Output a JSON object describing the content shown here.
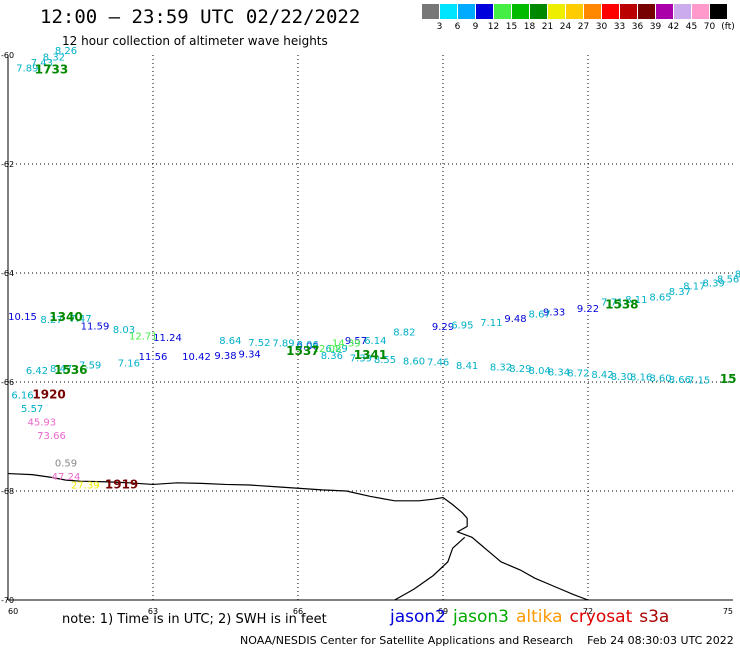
{
  "header": {
    "title": "12:00 – 23:59 UTC 02/22/2022",
    "subtitle": "12 hour collection of altimeter wave heights"
  },
  "color_scale": {
    "unit": "(ft)",
    "bins": [
      {
        "label": "3",
        "color": "#777777"
      },
      {
        "label": "6",
        "color": "#00e5ff"
      },
      {
        "label": "9",
        "color": "#00aaff"
      },
      {
        "label": "12",
        "color": "#0000dd"
      },
      {
        "label": "15",
        "color": "#44ee44"
      },
      {
        "label": "18",
        "color": "#00bb00"
      },
      {
        "label": "21",
        "color": "#008800"
      },
      {
        "label": "24",
        "color": "#eeee00"
      },
      {
        "label": "27",
        "color": "#ffcc00"
      },
      {
        "label": "30",
        "color": "#ff8800"
      },
      {
        "label": "33",
        "color": "#ff0000"
      },
      {
        "label": "36",
        "color": "#bb0000"
      },
      {
        "label": "39",
        "color": "#770000"
      },
      {
        "label": "42",
        "color": "#aa00aa"
      },
      {
        "label": "45",
        "color": "#ccaaee"
      },
      {
        "label": "70",
        "color": "#ff99cc"
      },
      {
        "label": "",
        "color": "#000000"
      }
    ]
  },
  "map": {
    "lon_range": [
      60,
      75
    ],
    "lat_range": [
      -70,
      -60
    ],
    "lon_ticks": [
      {
        "value": 60,
        "label": "60"
      },
      {
        "value": 63,
        "label": "63"
      },
      {
        "value": 66,
        "label": "66"
      },
      {
        "value": 69,
        "label": "69"
      },
      {
        "value": 72,
        "label": "72"
      },
      {
        "value": 75,
        "label": "75"
      }
    ],
    "lat_ticks": [
      {
        "value": -60,
        "label": "-60"
      },
      {
        "value": -62,
        "label": "-62"
      },
      {
        "value": -64,
        "label": "-64"
      },
      {
        "value": -66,
        "label": "-66"
      },
      {
        "value": -68,
        "label": "-68"
      },
      {
        "value": -70,
        "label": "-70"
      }
    ],
    "gridlines": true,
    "coastline": [
      [
        60.0,
        -67.68
      ],
      [
        60.5,
        -67.7
      ],
      [
        60.9,
        -67.75
      ],
      [
        61.2,
        -67.8
      ],
      [
        61.5,
        -67.82
      ],
      [
        62.0,
        -67.83
      ],
      [
        62.5,
        -67.85
      ],
      [
        63.0,
        -67.88
      ],
      [
        63.5,
        -67.85
      ],
      [
        64.0,
        -67.86
      ],
      [
        64.5,
        -67.88
      ],
      [
        65.0,
        -67.89
      ],
      [
        65.5,
        -67.92
      ],
      [
        66.0,
        -67.95
      ],
      [
        66.5,
        -67.98
      ],
      [
        67.0,
        -68.0
      ],
      [
        67.5,
        -68.1
      ],
      [
        68.0,
        -68.18
      ],
      [
        68.5,
        -68.18
      ],
      [
        68.8,
        -68.15
      ],
      [
        69.0,
        -68.12
      ],
      [
        69.2,
        -68.25
      ],
      [
        69.4,
        -68.4
      ],
      [
        69.5,
        -68.5
      ],
      [
        69.5,
        -68.65
      ],
      [
        69.3,
        -68.75
      ],
      [
        69.6,
        -68.85
      ],
      [
        69.8,
        -69.0
      ],
      [
        70.0,
        -69.15
      ],
      [
        70.2,
        -69.3
      ],
      [
        70.6,
        -69.45
      ],
      [
        70.9,
        -69.6
      ],
      [
        71.3,
        -69.75
      ],
      [
        71.7,
        -69.9
      ],
      [
        72.0,
        -70.0
      ]
    ],
    "coastline2": [
      [
        68.0,
        -70.0
      ],
      [
        68.4,
        -69.8
      ],
      [
        68.8,
        -69.55
      ],
      [
        69.1,
        -69.3
      ],
      [
        69.2,
        -69.05
      ],
      [
        69.45,
        -68.85
      ]
    ]
  },
  "tracks": [
    {
      "color": "#00b0c8",
      "points": [
        {
          "lon": 60.4,
          "lat": -60.3,
          "label": "7.89"
        },
        {
          "lon": 60.7,
          "lat": -60.2,
          "label": "7.43"
        },
        {
          "lon": 60.95,
          "lat": -60.1,
          "label": "8.32"
        },
        {
          "lon": 61.2,
          "lat": -59.98,
          "label": "8.26"
        }
      ]
    },
    {
      "color": "#0000dd",
      "points": [
        {
          "lon": 60.3,
          "lat": -64.86,
          "label": "10.15"
        },
        {
          "lon": 61.8,
          "lat": -65.04,
          "label": "11.59"
        },
        {
          "lon": 63.3,
          "lat": -65.25,
          "label": "11.24"
        },
        {
          "lon": 63.9,
          "lat": -65.6,
          "label": "10.42"
        },
        {
          "lon": 64.5,
          "lat": -65.58,
          "label": "9.38"
        },
        {
          "lon": 65.0,
          "lat": -65.55,
          "label": "9.34"
        },
        {
          "lon": 66.2,
          "lat": -65.4,
          "label": "9.06"
        },
        {
          "lon": 67.2,
          "lat": -65.3,
          "label": "9.57"
        },
        {
          "lon": 69.0,
          "lat": -65.05,
          "label": "9.29"
        },
        {
          "lon": 70.5,
          "lat": -64.9,
          "label": "9.48"
        },
        {
          "lon": 71.3,
          "lat": -64.78,
          "label": "9.33"
        },
        {
          "lon": 72.0,
          "lat": -64.72,
          "label": "9.22"
        }
      ]
    },
    {
      "color": "#00b0c8",
      "points": [
        {
          "lon": 60.9,
          "lat": -64.92,
          "label": "8.27"
        },
        {
          "lon": 61.5,
          "lat": -64.9,
          "label": "7.47"
        },
        {
          "lon": 62.4,
          "lat": -65.1,
          "label": "8.03"
        },
        {
          "lon": 64.6,
          "lat": -65.3,
          "label": "8.64"
        },
        {
          "lon": 65.2,
          "lat": -65.34,
          "label": "7.52"
        },
        {
          "lon": 65.7,
          "lat": -65.35,
          "label": "7.89"
        },
        {
          "lon": 66.2,
          "lat": -65.38,
          "label": "8.06"
        },
        {
          "lon": 66.8,
          "lat": -65.45,
          "label": "6.29"
        },
        {
          "lon": 67.6,
          "lat": -65.3,
          "label": "6.14"
        },
        {
          "lon": 68.2,
          "lat": -65.15,
          "label": "8.82"
        },
        {
          "lon": 69.4,
          "lat": -65.02,
          "label": "6.95"
        },
        {
          "lon": 70.0,
          "lat": -64.97,
          "label": "7.11"
        },
        {
          "lon": 71.0,
          "lat": -64.82,
          "label": "8.67"
        },
        {
          "lon": 72.5,
          "lat": -64.6,
          "label": "7.71"
        },
        {
          "lon": 73.0,
          "lat": -64.55,
          "label": "8.11"
        },
        {
          "lon": 73.5,
          "lat": -64.5,
          "label": "8.65"
        },
        {
          "lon": 73.9,
          "lat": -64.4,
          "label": "8.37"
        },
        {
          "lon": 74.2,
          "lat": -64.3,
          "label": "8.17"
        },
        {
          "lon": 74.6,
          "lat": -64.25,
          "label": "8.39"
        },
        {
          "lon": 74.9,
          "lat": -64.17,
          "label": "8.56"
        },
        {
          "lon": 75.2,
          "lat": -64.08,
          "label": "8.5"
        }
      ]
    },
    {
      "color": "#44ee44",
      "points": [
        {
          "lon": 62.8,
          "lat": -65.22,
          "label": "12.71"
        },
        {
          "lon": 66.6,
          "lat": -65.45,
          "label": "12.08"
        },
        {
          "lon": 67.0,
          "lat": -65.35,
          "label": "14.39"
        }
      ]
    },
    {
      "color": "#00b0c8",
      "points": [
        {
          "lon": 60.6,
          "lat": -65.85,
          "label": "6.42"
        },
        {
          "lon": 61.1,
          "lat": -65.82,
          "label": "8.47"
        },
        {
          "lon": 61.7,
          "lat": -65.75,
          "label": "7.59"
        },
        {
          "lon": 62.5,
          "lat": -65.72,
          "label": "7.16"
        },
        {
          "lon": 66.7,
          "lat": -65.58,
          "label": "8.36"
        },
        {
          "lon": 67.3,
          "lat": -65.62,
          "label": "7.39"
        },
        {
          "lon": 67.8,
          "lat": -65.65,
          "label": "8.55"
        },
        {
          "lon": 68.4,
          "lat": -65.68,
          "label": "8.60"
        },
        {
          "lon": 68.9,
          "lat": -65.7,
          "label": "7.46"
        },
        {
          "lon": 69.5,
          "lat": -65.76,
          "label": "8.41"
        },
        {
          "lon": 70.2,
          "lat": -65.79,
          "label": "8.32"
        },
        {
          "lon": 70.6,
          "lat": -65.82,
          "label": "8.29"
        },
        {
          "lon": 71.0,
          "lat": -65.85,
          "label": "8.04"
        },
        {
          "lon": 71.4,
          "lat": -65.88,
          "label": "8.34"
        },
        {
          "lon": 71.8,
          "lat": -65.9,
          "label": "8.72"
        },
        {
          "lon": 72.3,
          "lat": -65.93,
          "label": "8.42"
        },
        {
          "lon": 72.7,
          "lat": -65.96,
          "label": "8.30"
        },
        {
          "lon": 73.1,
          "lat": -65.97,
          "label": "8.16"
        },
        {
          "lon": 73.5,
          "lat": -65.99,
          "label": "8.60"
        },
        {
          "lon": 73.9,
          "lat": -66.02,
          "label": "8.66"
        },
        {
          "lon": 74.3,
          "lat": -66.03,
          "label": "7.15"
        }
      ]
    },
    {
      "color": "#0000dd",
      "points": [
        {
          "lon": 63.0,
          "lat": -65.6,
          "label": "11.56"
        }
      ]
    },
    {
      "color": "#00b0c8",
      "points": [
        {
          "lon": 60.3,
          "lat": -66.3,
          "label": "6.16"
        },
        {
          "lon": 60.5,
          "lat": -66.55,
          "label": "5.57"
        }
      ]
    },
    {
      "color": "#ee66cc",
      "points": [
        {
          "lon": 60.7,
          "lat": -66.8,
          "label": "45.93"
        },
        {
          "lon": 60.9,
          "lat": -67.05,
          "label": "73.66"
        },
        {
          "lon": 61.2,
          "lat": -67.8,
          "label": "47.24"
        }
      ]
    },
    {
      "color": "#888888",
      "points": [
        {
          "lon": 61.2,
          "lat": -67.55,
          "label": "0.59"
        }
      ]
    },
    {
      "color": "#eeee00",
      "points": [
        {
          "lon": 61.6,
          "lat": -67.95,
          "label": "27.39"
        }
      ]
    }
  ],
  "time_labels": [
    {
      "lon": 60.9,
      "lat": -60.34,
      "label": "1733",
      "color": "#008800"
    },
    {
      "lon": 61.2,
      "lat": -64.88,
      "label": "1340",
      "color": "#008800"
    },
    {
      "lon": 61.3,
      "lat": -65.85,
      "label": "1536",
      "color": "#008800"
    },
    {
      "lon": 60.85,
      "lat": -66.3,
      "label": "1920",
      "color": "#770000"
    },
    {
      "lon": 62.35,
      "lat": -67.95,
      "label": "1919",
      "color": "#770000"
    },
    {
      "lon": 66.1,
      "lat": -65.5,
      "label": "1537",
      "color": "#008800"
    },
    {
      "lon": 67.5,
      "lat": -65.58,
      "label": "1341",
      "color": "#008800"
    },
    {
      "lon": 72.7,
      "lat": -64.65,
      "label": "1538",
      "color": "#008800"
    },
    {
      "lon": 74.9,
      "lat": -66.02,
      "label": "15",
      "color": "#008800"
    }
  ],
  "footer": {
    "note": "note: 1) Time is in UTC; 2) SWH is in feet",
    "satellites": [
      {
        "name": "jason2",
        "color": "#0000dd"
      },
      {
        "name": "jason3",
        "color": "#00aa00"
      },
      {
        "name": "altika",
        "color": "#ff9900"
      },
      {
        "name": "cryosat",
        "color": "#dd0000"
      },
      {
        "name": "s3a",
        "color": "#aa0000"
      }
    ],
    "credit": "NOAA/NESDIS Center for Satellite Applications and Research    Feb 24 08:30:03 UTC 2022"
  }
}
